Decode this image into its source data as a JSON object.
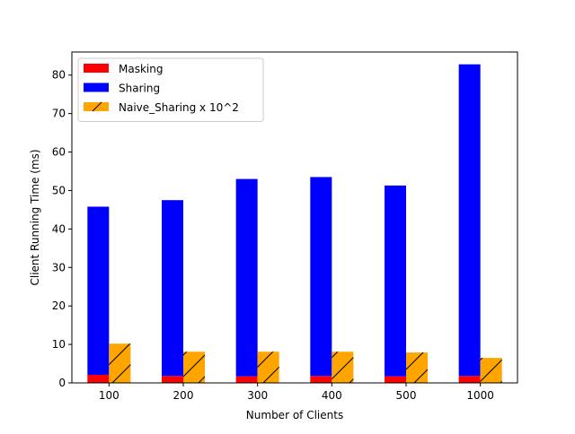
{
  "chart_data": {
    "type": "bar",
    "title": "",
    "xlabel": "Number of Clients",
    "ylabel": "Client Running Time (ms)",
    "categories": [
      "100",
      "200",
      "300",
      "400",
      "500",
      "1000"
    ],
    "ylim": [
      0,
      86
    ],
    "yticks": [
      0,
      10,
      20,
      30,
      40,
      50,
      60,
      70,
      80
    ],
    "grid": false,
    "legend_position": "top-left",
    "bar_mode": "sharing stacked on masking; naive sharing beside",
    "series": [
      {
        "name": "Masking",
        "color": "#ff0000",
        "hatch": "",
        "stack": "a",
        "values": [
          2.1,
          1.8,
          1.7,
          1.8,
          1.7,
          1.8
        ]
      },
      {
        "name": "Sharing",
        "color": "#0000ff",
        "hatch": "",
        "stack": "a",
        "values": [
          43.7,
          45.7,
          51.3,
          51.7,
          49.6,
          81.0
        ]
      },
      {
        "name": "Naive_Sharing x 10^2",
        "color": "#ffa500",
        "hatch": "/",
        "stack": "b",
        "values": [
          10.2,
          8.1,
          8.1,
          8.1,
          7.9,
          6.5
        ]
      }
    ]
  }
}
